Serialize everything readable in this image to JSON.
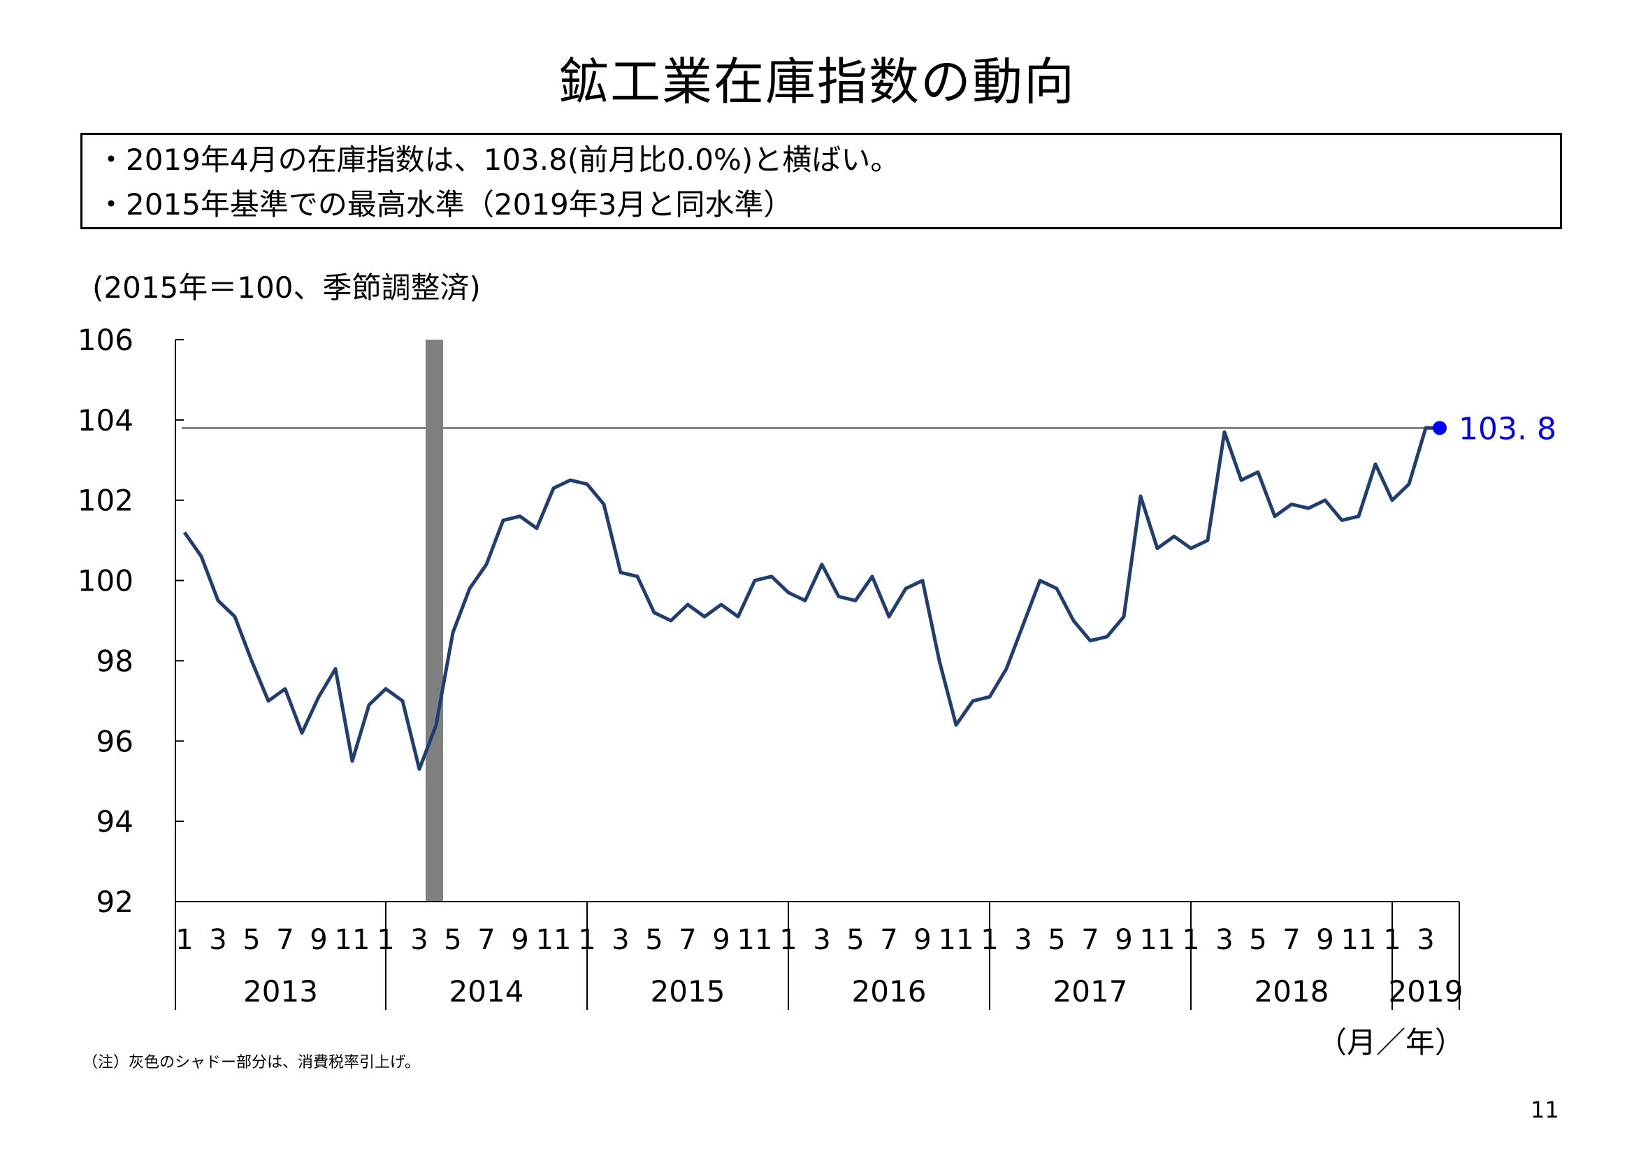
{
  "title": "鉱工業在庫指数の動向",
  "summary": [
    "・2019年4月の在庫指数は、103.8(前月比0.0%)と横ばい。",
    "・2015年基準での最高水準（2019年3月と同水準）"
  ],
  "unit_note": "(2015年＝100、季節調整済)",
  "xaxis_unit": "（月／年）",
  "footnote": "（注）灰色のシャドー部分は、消費税率引上げ。",
  "page_number": "11",
  "colors": {
    "line": "#1F3F73",
    "reference_line": "#808080",
    "shade": "#808080",
    "latest_marker": "#0000FF"
  },
  "chart_data": {
    "type": "line",
    "y_ticks": [
      "106",
      "104",
      "102",
      "100",
      "98",
      "96",
      "94",
      "92"
    ],
    "ylim": [
      92,
      106
    ],
    "years": [
      "2013",
      "2014",
      "2015",
      "2016",
      "2017",
      "2018",
      "2019"
    ],
    "month_ticks": [
      "1",
      "3",
      "5",
      "7",
      "9",
      "11"
    ],
    "month_ticks_2019": [
      "1",
      "3"
    ],
    "series": [
      {
        "values": [
          101.2,
          100.6,
          99.5,
          99.1,
          98.0,
          97.0,
          97.3,
          96.2,
          97.1,
          97.8,
          95.5,
          96.9,
          97.3,
          97.0,
          95.3,
          96.4,
          98.7,
          99.8,
          100.4,
          101.5,
          101.6,
          101.3,
          102.3,
          102.5,
          102.4,
          101.9,
          100.2,
          100.1,
          99.2,
          99.0,
          99.4,
          99.1,
          99.4,
          99.1,
          100.0,
          100.1,
          99.7,
          99.5,
          100.4,
          99.6,
          99.5,
          100.1,
          99.1,
          99.8,
          100.0,
          98.0,
          96.4,
          97.0,
          97.1,
          97.8,
          98.9,
          100.0,
          99.8,
          99.0,
          98.5,
          98.6,
          99.1,
          102.1,
          100.8,
          101.1,
          100.8,
          101.0,
          103.7,
          102.5,
          102.7,
          101.6,
          101.9,
          101.8,
          102.0,
          101.5,
          101.6,
          102.9,
          102.0,
          102.4,
          103.8,
          103.8
        ]
      }
    ],
    "reference_line_value": 103.8,
    "shaded_period": {
      "start": "2014-03",
      "end": "2014-04"
    },
    "latest_label": "103. 8"
  }
}
